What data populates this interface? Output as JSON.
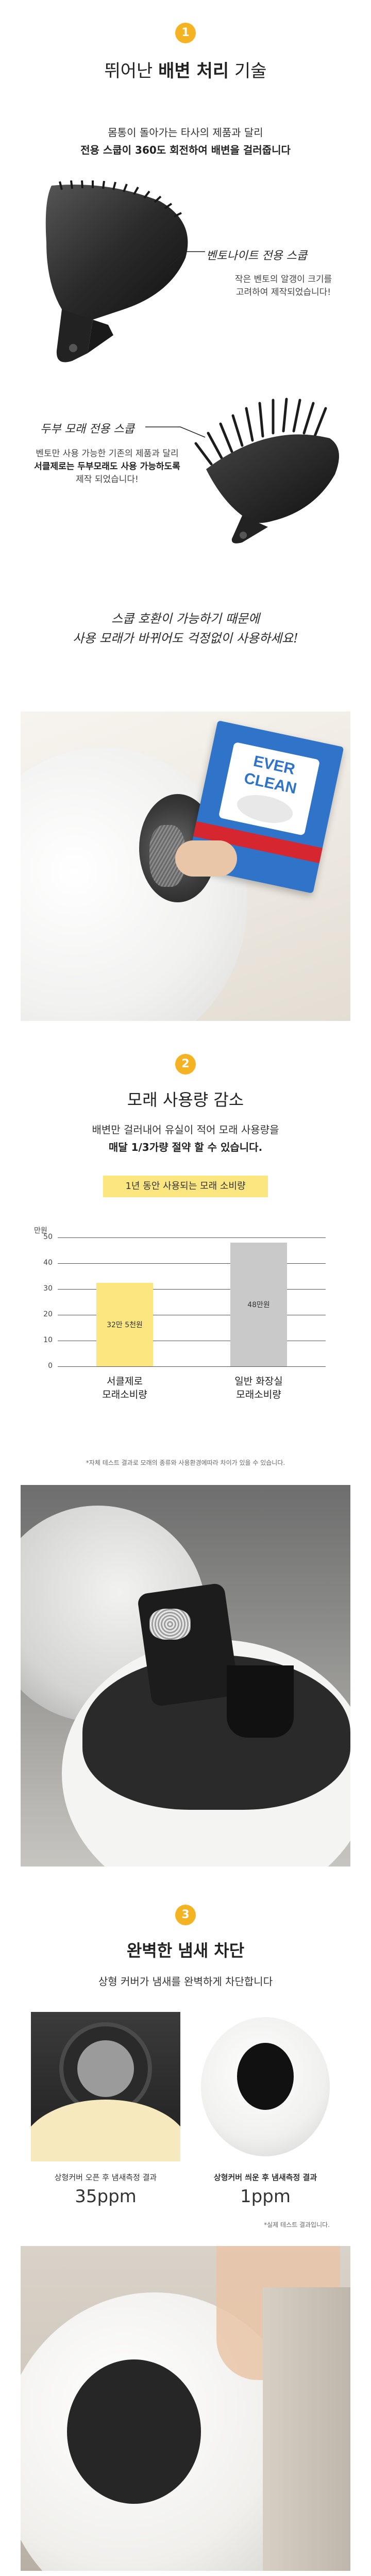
{
  "section1": {
    "badge": "1",
    "title_pre": "뛰어난 ",
    "title_bold": "배변 처리",
    "title_post": " 기술",
    "intro_line1": "몸통이 돌아가는 타사의 제품과 달리",
    "intro_line2": "전용 스쿱이 360도 회전하여 배변을 걸러줍니다",
    "scoop1": {
      "label": "벤토나이트 전용 스쿱",
      "desc_line1": "작은 벤토의 알갱이 크기를",
      "desc_line2": "고려하여 제작되었습니다!"
    },
    "scoop2": {
      "label": "두부 모래 전용 스쿱",
      "desc_line1": "벤토만 사용 가능한 기존의 제품과 달리",
      "desc_line2": "서클제로는 두부모래도 사용 가능하도록",
      "desc_line3": "제작 되었습니다!"
    },
    "compat_line1": "스쿱 호환이 가능하기 때문에",
    "compat_line2": "사용 모래가 바뀌어도 걱정없이 사용하세요!",
    "box_brand1": "EVER",
    "box_brand2": "CLEAN"
  },
  "section2": {
    "badge": "2",
    "title": "모래 사용량 감소",
    "desc_line1": "배변만 걸러내어 유실이 적어 모래 사용량을",
    "desc_line2": "매달 1/3가량 절약 할 수 있습니다.",
    "note": "*자체 테스트 결과로 모래의 종류와 사용환경에따라 차이가 있을 수 있습니다."
  },
  "chart_data": {
    "type": "bar",
    "title": "1년 동안 사용되는 모래 소비량",
    "ylabel": "만원",
    "ylim": [
      0,
      50
    ],
    "yticks": [
      0,
      10,
      20,
      30,
      40,
      50
    ],
    "categories": [
      "서클제로\n모래소비량",
      "일반 화장실\n모래소비량"
    ],
    "category_line1": [
      "서클제로",
      "일반 화장실"
    ],
    "category_line2": [
      "모래소비량",
      "모래소비량"
    ],
    "values": [
      32.5,
      48
    ],
    "value_labels": [
      "32만 5천원",
      "48만원"
    ],
    "colors": [
      "#fbe680",
      "#c9c9c9"
    ],
    "grid": true
  },
  "section3": {
    "badge": "3",
    "title": "완벽한 냄새 차단",
    "desc": "상형 커버가 냄새를 완벽하게 차단합니다",
    "left_caption": "상형커버 오픈 후 냄새측정 결과",
    "left_value": "35ppm",
    "right_caption": "상형커버 씌운 후 냄새측정 결과",
    "right_value": "1ppm",
    "note": "*실제 테스트 결과입니다."
  },
  "colors": {
    "accent": "#f3b323",
    "bar_highlight": "#fbe680",
    "bar_gray": "#c9c9c9"
  }
}
